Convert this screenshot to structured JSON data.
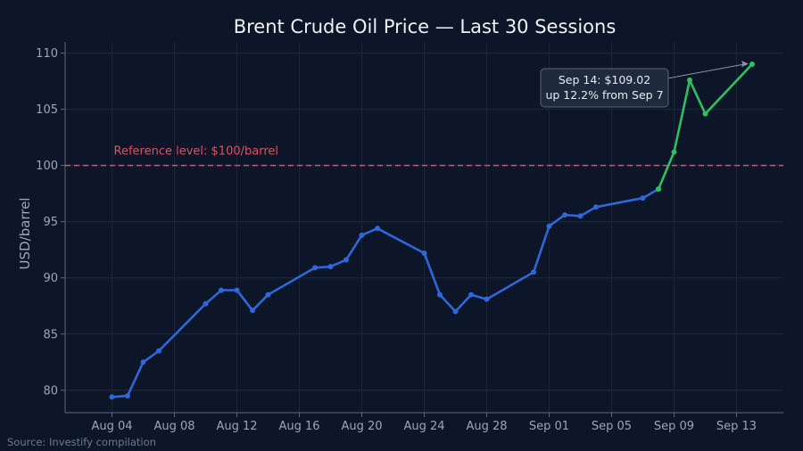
{
  "chart_data": {
    "type": "line",
    "title": "Brent Crude Oil Price — Last 30 Sessions",
    "xlabel": "",
    "ylabel": "USD/barrel",
    "ylim": [
      78,
      111
    ],
    "xlim": [
      "2024-08-01",
      "2024-09-16"
    ],
    "yticks": [
      80,
      85,
      90,
      95,
      100,
      105,
      110
    ],
    "xticks": [
      {
        "date": "2024-08-04",
        "label": "Aug 04"
      },
      {
        "date": "2024-08-08",
        "label": "Aug 08"
      },
      {
        "date": "2024-08-12",
        "label": "Aug 12"
      },
      {
        "date": "2024-08-16",
        "label": "Aug 16"
      },
      {
        "date": "2024-08-20",
        "label": "Aug 20"
      },
      {
        "date": "2024-08-24",
        "label": "Aug 24"
      },
      {
        "date": "2024-08-28",
        "label": "Aug 28"
      },
      {
        "date": "2024-09-01",
        "label": "Sep 01"
      },
      {
        "date": "2024-09-05",
        "label": "Sep 05"
      },
      {
        "date": "2024-09-09",
        "label": "Sep 09"
      },
      {
        "date": "2024-09-13",
        "label": "Sep 13"
      }
    ],
    "grid": true,
    "series": [
      {
        "color": "#2f67d8",
        "points": [
          {
            "x": "2024-08-04",
            "y": 79.4
          },
          {
            "x": "2024-08-05",
            "y": 79.5
          },
          {
            "x": "2024-08-06",
            "y": 82.5
          },
          {
            "x": "2024-08-07",
            "y": 83.5
          },
          {
            "x": "2024-08-10",
            "y": 87.7
          },
          {
            "x": "2024-08-11",
            "y": 88.9
          },
          {
            "x": "2024-08-12",
            "y": 88.9
          },
          {
            "x": "2024-08-13",
            "y": 87.1
          },
          {
            "x": "2024-08-14",
            "y": 88.5
          },
          {
            "x": "2024-08-17",
            "y": 90.9
          },
          {
            "x": "2024-08-18",
            "y": 91.0
          },
          {
            "x": "2024-08-19",
            "y": 91.6
          },
          {
            "x": "2024-08-20",
            "y": 93.8
          },
          {
            "x": "2024-08-21",
            "y": 94.4
          },
          {
            "x": "2024-08-24",
            "y": 92.2
          },
          {
            "x": "2024-08-25",
            "y": 88.5
          },
          {
            "x": "2024-08-26",
            "y": 87.0
          },
          {
            "x": "2024-08-27",
            "y": 88.5
          },
          {
            "x": "2024-08-28",
            "y": 88.1
          },
          {
            "x": "2024-08-31",
            "y": 90.5
          },
          {
            "x": "2024-09-01",
            "y": 94.6
          },
          {
            "x": "2024-09-02",
            "y": 95.6
          },
          {
            "x": "2024-09-03",
            "y": 95.5
          },
          {
            "x": "2024-09-04",
            "y": 96.3
          },
          {
            "x": "2024-09-07",
            "y": 97.1
          },
          {
            "x": "2024-09-08",
            "y": 97.9
          }
        ]
      },
      {
        "color": "#2fbf5f",
        "points": [
          {
            "x": "2024-09-08",
            "y": 97.9
          },
          {
            "x": "2024-09-09",
            "y": 101.2
          },
          {
            "x": "2024-09-10",
            "y": 107.6
          },
          {
            "x": "2024-09-11",
            "y": 104.6
          },
          {
            "x": "2024-09-14",
            "y": 109.02
          }
        ]
      }
    ],
    "reference_line": {
      "y": 100,
      "label": "Reference level: $100/barrel",
      "color": "#e0525a"
    },
    "annotation": {
      "line1": "Sep 14: $109.02",
      "line2": "up 12.2% from Sep 7",
      "target": {
        "x": "2024-09-14",
        "y": 109.02
      }
    },
    "source": "Source: Investify compilation"
  }
}
